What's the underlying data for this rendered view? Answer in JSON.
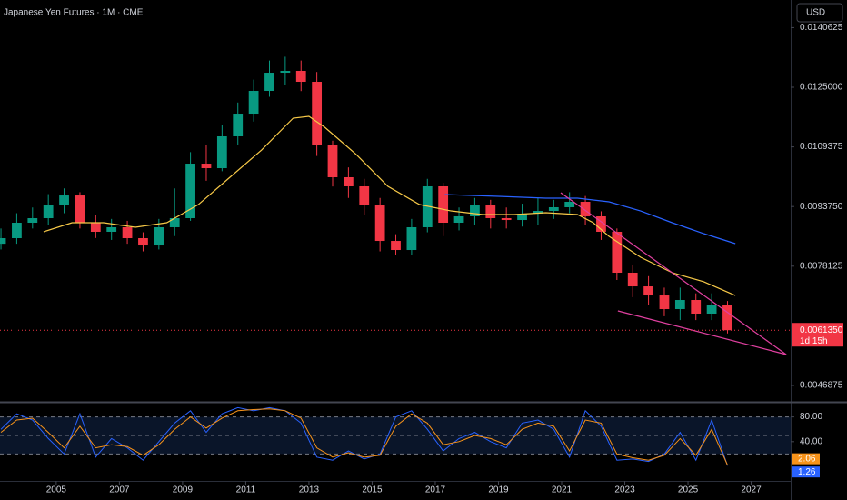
{
  "chart_data": [
    {
      "type": "candlestick",
      "title": "Japanese Yen Futures · 1M · CME",
      "currency": "USD",
      "up_color": "#089981",
      "down_color": "#f23645",
      "x": [
        2003.25,
        2003.75,
        2004.25,
        2004.75,
        2005.25,
        2005.75,
        2006.25,
        2006.75,
        2007.25,
        2007.75,
        2008.25,
        2008.75,
        2009.25,
        2009.75,
        2010.25,
        2010.75,
        2011.25,
        2011.75,
        2012.25,
        2012.75,
        2013.25,
        2013.75,
        2014.25,
        2014.75,
        2015.25,
        2015.75,
        2016.25,
        2016.75,
        2017.25,
        2017.75,
        2018.25,
        2018.75,
        2019.25,
        2019.75,
        2020.25,
        2020.75,
        2021.25,
        2021.75,
        2022.25,
        2022.75,
        2023.25,
        2023.75,
        2024.25,
        2024.75,
        2025.25,
        2025.75,
        2026.25
      ],
      "open": [
        0.0084,
        0.008546,
        0.008951,
        0.00907,
        0.009427,
        0.009665,
        0.008951,
        0.008713,
        0.008832,
        0.008546,
        0.008355,
        0.008832,
        0.00907,
        0.010499,
        0.01038,
        0.011214,
        0.011809,
        0.012405,
        0.012881,
        0.012929,
        0.012643,
        0.010976,
        0.010142,
        0.009904,
        0.009427,
        0.008474,
        0.008236,
        0.008832,
        0.009904,
        0.008951,
        0.009118,
        0.009427,
        0.00907,
        0.009022,
        0.009189,
        0.00926,
        0.009356,
        0.009499,
        0.009118,
        0.008713,
        0.007641,
        0.007283,
        0.007045,
        0.006688,
        0.006926,
        0.006569,
        0.006807
      ],
      "high": [
        0.0088,
        0.0092,
        0.00935,
        0.0097,
        0.00985,
        0.00975,
        0.00915,
        0.00905,
        0.009,
        0.0087,
        0.00905,
        0.00985,
        0.0108,
        0.011,
        0.0115,
        0.0121,
        0.0127,
        0.0132,
        0.0133,
        0.0132,
        0.0129,
        0.0111,
        0.0104,
        0.0101,
        0.0096,
        0.00865,
        0.00905,
        0.0101,
        0.01,
        0.00935,
        0.0096,
        0.00955,
        0.00935,
        0.00945,
        0.0096,
        0.00955,
        0.00975,
        0.00965,
        0.00925,
        0.0088,
        0.00785,
        0.00755,
        0.00725,
        0.00725,
        0.0071,
        0.0071,
        0.0069
      ],
      "low": [
        0.00825,
        0.0084,
        0.0088,
        0.0089,
        0.0092,
        0.0088,
        0.00855,
        0.0085,
        0.0084,
        0.0082,
        0.00825,
        0.0086,
        0.009,
        0.01005,
        0.0103,
        0.011,
        0.0116,
        0.01225,
        0.01255,
        0.0124,
        0.0107,
        0.0099,
        0.0096,
        0.00915,
        0.0082,
        0.0081,
        0.0081,
        0.0087,
        0.0086,
        0.00875,
        0.0089,
        0.0088,
        0.0088,
        0.00885,
        0.0089,
        0.00905,
        0.0092,
        0.0089,
        0.0085,
        0.00745,
        0.007,
        0.0068,
        0.0065,
        0.0064,
        0.0064,
        0.0064,
        0.00605
      ],
      "close": [
        0.008546,
        0.008951,
        0.00907,
        0.009427,
        0.009665,
        0.008951,
        0.008713,
        0.008832,
        0.008546,
        0.008355,
        0.008832,
        0.00907,
        0.010499,
        0.01038,
        0.011214,
        0.011809,
        0.012405,
        0.012881,
        0.012929,
        0.012643,
        0.010976,
        0.010142,
        0.009904,
        0.009427,
        0.008474,
        0.008236,
        0.008832,
        0.009904,
        0.008951,
        0.009118,
        0.009427,
        0.00907,
        0.009022,
        0.009189,
        0.00926,
        0.009356,
        0.009499,
        0.009118,
        0.008713,
        0.007641,
        0.007283,
        0.007045,
        0.006688,
        0.006926,
        0.006569,
        0.006807,
        0.006135
      ],
      "overlays": [
        {
          "color": "#f7c948",
          "x": [
            2004.6,
            2005.5,
            2006.5,
            2007.5,
            2008.5,
            2009.5,
            2010.5,
            2011.5,
            2012.5,
            2013,
            2013.5,
            2014.5,
            2015.5,
            2016.5,
            2017.5,
            2018.5,
            2019.5,
            2020.5,
            2021.5,
            2022,
            2022.5,
            2023.5,
            2024.5,
            2025.5,
            2026.5
          ],
          "values": [
            0.008713,
            0.008951,
            0.008951,
            0.008832,
            0.008951,
            0.009427,
            0.010142,
            0.010856,
            0.01169,
            0.011738,
            0.011452,
            0.010737,
            0.009904,
            0.009427,
            0.00926,
            0.009165,
            0.009165,
            0.009213,
            0.009165,
            0.008951,
            0.008594,
            0.008046,
            0.007641,
            0.007403,
            0.007045
          ]
        },
        {
          "color": "#2962ff",
          "x": [
            2017.3,
            2019,
            2020.5,
            2021.5,
            2022.5,
            2023.5,
            2024.5,
            2025.5,
            2026.5
          ],
          "values": [
            0.009689,
            0.009642,
            0.009594,
            0.009594,
            0.009499,
            0.00926,
            0.008951,
            0.008665,
            0.008403
          ]
        },
        {
          "color": "#e040a0",
          "x": [
            2020.97,
            2028.11
          ],
          "values": [
            0.009737,
            0.005497
          ]
        },
        {
          "color": "#e040a0",
          "x": [
            2022.78,
            2028.11
          ],
          "values": [
            0.00664,
            0.005497
          ]
        }
      ],
      "last_price": {
        "value": 0.006135,
        "label": "0.0061350",
        "color": "#f23645"
      },
      "countdown": "1d 15h",
      "xlim": [
        2003.22,
        2028.25
      ],
      "xticks": [
        2005,
        2007,
        2009,
        2011,
        2013,
        2015,
        2017,
        2019,
        2021,
        2023,
        2025,
        2027
      ],
      "ylim": [
        0.004306,
        0.014787
      ],
      "yticks": [
        0.0140625,
        {
          "value": 0.0125,
          "label": "0.0125000"
        },
        0.0109375,
        {
          "value": 0.009375,
          "label": "0.0093750"
        },
        0.0078125,
        0.0046875
      ]
    },
    {
      "type": "line",
      "xlim": [
        2003.22,
        2028.25
      ],
      "ylim": [
        -22,
        100
      ],
      "yticks": [
        {
          "value": 80,
          "label": "80.00"
        },
        {
          "value": 40,
          "label": "40.00"
        }
      ],
      "levels": [
        80,
        50,
        20
      ],
      "series": [
        {
          "color": "#2962ff",
          "values": [
            60,
            85,
            75,
            45,
            20,
            85,
            15,
            45,
            30,
            10,
            40,
            70,
            90,
            55,
            85,
            95,
            90,
            95,
            90,
            70,
            15,
            10,
            25,
            12,
            20,
            80,
            90,
            60,
            25,
            45,
            55,
            40,
            30,
            70,
            75,
            60,
            15,
            90,
            65,
            10,
            12,
            8,
            20,
            55,
            10,
            75,
            1.26
          ]
        },
        {
          "color": "#f7931a",
          "values": [
            55,
            75,
            78,
            55,
            30,
            65,
            30,
            35,
            32,
            18,
            35,
            60,
            80,
            62,
            78,
            90,
            92,
            93,
            90,
            78,
            30,
            15,
            22,
            15,
            18,
            65,
            85,
            70,
            35,
            40,
            50,
            45,
            35,
            60,
            70,
            65,
            25,
            75,
            70,
            20,
            14,
            10,
            18,
            45,
            18,
            60,
            2.06
          ]
        }
      ],
      "x": [
        2003.25,
        2003.75,
        2004.25,
        2004.75,
        2005.25,
        2005.75,
        2006.25,
        2006.75,
        2007.25,
        2007.75,
        2008.25,
        2008.75,
        2009.25,
        2009.75,
        2010.25,
        2010.75,
        2011.25,
        2011.75,
        2012.25,
        2012.75,
        2013.25,
        2013.75,
        2014.25,
        2014.75,
        2015.25,
        2015.75,
        2016.25,
        2016.75,
        2017.25,
        2017.75,
        2018.25,
        2018.75,
        2019.25,
        2019.75,
        2020.25,
        2020.75,
        2021.25,
        2021.75,
        2022.25,
        2022.75,
        2023.25,
        2023.75,
        2024.25,
        2024.75,
        2025.25,
        2025.75,
        2026.25
      ]
    }
  ]
}
